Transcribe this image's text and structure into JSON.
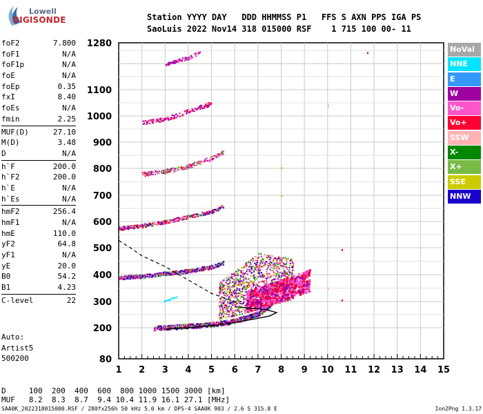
{
  "logo": {
    "top": "Lowell",
    "bottom": "DIGISONDE"
  },
  "header": {
    "line1": "Station YYYY DAY   DDD HHMMSS P1   FFS S AXN PPS IGA PS",
    "line2": "SaoLuis 2022 Nov14 318 015000 RSF    1 715 100 00- 11"
  },
  "params_groups": [
    [
      {
        "name": "foF2",
        "value": "7.800"
      },
      {
        "name": "foF1",
        "value": "N/A"
      },
      {
        "name": "foF1p",
        "value": "N/A"
      },
      {
        "name": "foE",
        "value": "N/A"
      },
      {
        "name": "foEp",
        "value": "0.35"
      },
      {
        "name": "fxI",
        "value": "8.40"
      },
      {
        "name": "foEs",
        "value": "N/A"
      },
      {
        "name": "fmin",
        "value": "2.25"
      }
    ],
    [
      {
        "name": "MUF(D)",
        "value": "27.10"
      },
      {
        "name": "M(D)",
        "value": "3.48"
      },
      {
        "name": "D",
        "value": "N/A"
      }
    ],
    [
      {
        "name": "h`F",
        "value": "200.0"
      },
      {
        "name": "h`F2",
        "value": "200.0"
      },
      {
        "name": "h`E",
        "value": "N/A"
      },
      {
        "name": "h`Es",
        "value": "N/A"
      }
    ],
    [
      {
        "name": "hmF2",
        "value": "256.4"
      },
      {
        "name": "hmF1",
        "value": "N/A"
      },
      {
        "name": "hmE",
        "value": "110.0"
      },
      {
        "name": "yF2",
        "value": "64.8"
      },
      {
        "name": "yF1",
        "value": "N/A"
      },
      {
        "name": "yE",
        "value": "20.0"
      },
      {
        "name": "B0",
        "value": "54.2"
      },
      {
        "name": "B1",
        "value": "4.23"
      }
    ],
    [
      {
        "name": "C-level",
        "value": "22"
      }
    ]
  ],
  "auto": {
    "line1": "Auto:",
    "line2": "Artist5",
    "line3": "500200"
  },
  "legend": [
    {
      "label": "NoVal",
      "color": "#a8a8a8"
    },
    {
      "label": "NNE",
      "color": "#00e5ff"
    },
    {
      "label": "E",
      "color": "#3399ff"
    },
    {
      "label": "W",
      "color": "#a000a0"
    },
    {
      "label": "Vo-",
      "color": "#ff55cc"
    },
    {
      "label": "Vo+",
      "color": "#ff0033"
    },
    {
      "label": "SSW",
      "color": "#ffb3b3"
    },
    {
      "label": "X-",
      "color": "#008800"
    },
    {
      "label": "X+",
      "color": "#77bb44"
    },
    {
      "label": "SSE",
      "color": "#cccc00"
    },
    {
      "label": "NNW",
      "color": "#1a00cc"
    }
  ],
  "footer": {
    "line1": "D     100  200  400  600  800 1000 1500 3000 [km]",
    "line2": "MUF   8.2  8.3  8.7  9.4 10.4 11.9 16.1 27.1 [MHz]"
  },
  "bottom": {
    "left": "SAA0K_2022318015000.RSF / 280fx256h 50 kHz 5.0 km / DPS-4 SAA0K 903 / 2.6 S 315.8 E",
    "right": "Ion2Png 1.3.17"
  },
  "chart_data": {
    "type": "scatter",
    "title": "",
    "xlabel": "",
    "ylabel": "",
    "xlim": [
      1,
      15
    ],
    "ylim": [
      80,
      1280
    ],
    "xticks": [
      "1",
      "2",
      "3",
      "4",
      "5",
      "6",
      "7",
      "8",
      "9",
      "10",
      "11",
      "12",
      "13",
      "14",
      "15"
    ],
    "yticks": [
      "80",
      "200",
      "300",
      "400",
      "500",
      "600",
      "700",
      "800",
      "900",
      "1000",
      "1100",
      "1280"
    ],
    "grid": true,
    "trace_hop1": {
      "x": [
        2.5,
        3.5,
        4.5,
        5.5,
        6.0,
        6.5,
        7.0,
        7.5,
        7.7,
        7.8
      ],
      "y": [
        200,
        205,
        210,
        220,
        228,
        240,
        255,
        285,
        310,
        350
      ]
    },
    "trace_hop2": {
      "x": [
        1.0,
        2.0,
        3.0,
        4.0,
        5.0,
        5.5
      ],
      "y": [
        390,
        395,
        405,
        415,
        430,
        445
      ]
    },
    "trace_hop3": {
      "x": [
        1.0,
        2.0,
        3.0,
        4.0,
        5.0,
        5.5
      ],
      "y": [
        575,
        585,
        600,
        620,
        640,
        660
      ]
    },
    "trace_hop4": {
      "x": [
        2.0,
        3.0,
        4.0,
        5.0,
        5.5
      ],
      "y": [
        780,
        790,
        810,
        840,
        865
      ]
    },
    "trace_hop5": {
      "x": [
        2.0,
        3.0,
        4.0,
        5.0
      ],
      "y": [
        975,
        990,
        1020,
        1050
      ]
    },
    "trace_hop6": {
      "x": [
        3.0,
        4.0,
        4.5
      ],
      "y": [
        1200,
        1225,
        1245
      ]
    },
    "profile_curve": {
      "x": [
        3.0,
        4.0,
        5.0,
        6.0,
        7.0,
        7.5,
        7.8,
        7.4,
        7.0,
        6.5,
        6.0
      ],
      "y": [
        195,
        200,
        208,
        220,
        236,
        245,
        258,
        268,
        272,
        276,
        280
      ]
    },
    "profile_dashed": {
      "x": [
        1.0,
        1.5,
        2.0,
        3.0,
        4.0,
        5.0,
        6.0,
        6.5
      ],
      "y": [
        528,
        500,
        470,
        430,
        380,
        330,
        300,
        285
      ]
    }
  }
}
